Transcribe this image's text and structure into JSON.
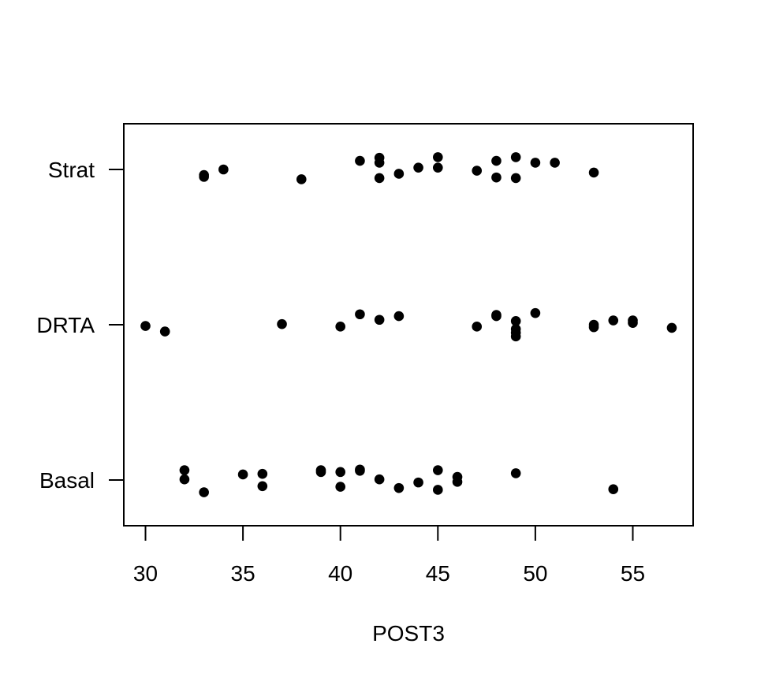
{
  "chart_data": {
    "type": "scatter",
    "title": "",
    "xlabel": "POST3",
    "ylabel": "",
    "xlim": [
      29,
      58
    ],
    "x_ticks": [
      "30",
      "35",
      "40",
      "45",
      "50",
      "55"
    ],
    "categories": [
      "Basal",
      "DRTA",
      "Strat"
    ],
    "grid": false,
    "series": [
      {
        "category": "Basal",
        "x": [
          32,
          32,
          33,
          35,
          36,
          36,
          39,
          39,
          40,
          40,
          41,
          41,
          42,
          43,
          44,
          45,
          45,
          46,
          46,
          49,
          54
        ],
        "jitter": [
          0.16,
          0.01,
          -0.2,
          0.09,
          0.1,
          -0.1,
          0.16,
          0.13,
          0.13,
          -0.11,
          0.17,
          0.15,
          0.01,
          -0.13,
          -0.04,
          0.16,
          -0.16,
          0.05,
          -0.03,
          0.11,
          -0.15
        ]
      },
      {
        "category": "DRTA",
        "x": [
          30,
          31,
          37,
          40,
          41,
          42,
          43,
          47,
          48,
          48,
          49,
          49,
          49,
          49,
          50,
          53,
          53,
          54,
          55,
          55,
          57
        ],
        "jitter": [
          -0.02,
          -0.11,
          0.01,
          -0.03,
          0.17,
          0.08,
          0.14,
          -0.03,
          0.16,
          0.14,
          0.06,
          -0.07,
          -0.13,
          -0.19,
          0.19,
          0.0,
          -0.04,
          0.07,
          0.07,
          0.03,
          -0.05
        ]
      },
      {
        "category": "Strat",
        "x": [
          33,
          33,
          34,
          38,
          41,
          42,
          42,
          42,
          43,
          44,
          45,
          45,
          47,
          48,
          48,
          49,
          49,
          50,
          51,
          53
        ],
        "jitter": [
          -0.09,
          -0.12,
          0.0,
          -0.16,
          0.14,
          0.19,
          0.11,
          -0.14,
          -0.07,
          0.03,
          0.2,
          0.03,
          -0.02,
          0.14,
          -0.13,
          0.2,
          -0.14,
          0.11,
          0.11,
          -0.05
        ]
      }
    ]
  }
}
